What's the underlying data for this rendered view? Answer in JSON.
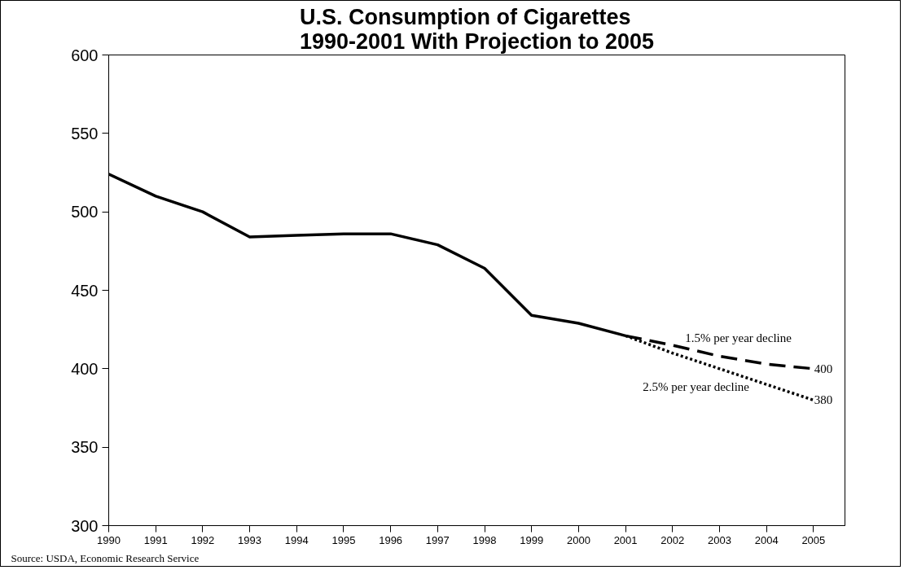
{
  "chart_data": {
    "type": "line",
    "title": "U.S. Consumption of Cigarettes\n1990-2001 With Projection to 2005",
    "x": [
      1990,
      1991,
      1992,
      1993,
      1994,
      1995,
      1996,
      1997,
      1998,
      1999,
      2000,
      2001
    ],
    "series": [
      {
        "color": "#000000",
        "line_style": "solid",
        "values": [
          524,
          510,
          500,
          484,
          485,
          486,
          486,
          479,
          464,
          434,
          429,
          421
        ]
      },
      {
        "name": "1.5% per year decline",
        "color": "#000000",
        "line_style": "dashed",
        "x": [
          2001,
          2002,
          2003,
          2004,
          2005
        ],
        "values": [
          421,
          415,
          408,
          403,
          400
        ],
        "value_labels": [
          null,
          null,
          null,
          null,
          "400"
        ]
      },
      {
        "name": "2.5% per year decline",
        "color": "#000000",
        "line_style": "dotted",
        "x": [
          2001,
          2002,
          2003,
          2004,
          2005
        ],
        "values": [
          421,
          410,
          400,
          390,
          380
        ],
        "value_labels": [
          null,
          null,
          null,
          null,
          "380"
        ]
      }
    ],
    "xlim": [
      1990,
      2005.67
    ],
    "xticks": [
      1990,
      1991,
      1992,
      1993,
      1994,
      1995,
      1996,
      1997,
      1998,
      1999,
      2000,
      2001,
      2002,
      2003,
      2004,
      2005
    ],
    "ylim": [
      300,
      600
    ],
    "yticks": [
      300,
      350,
      400,
      450,
      500,
      550,
      600
    ],
    "grid": false,
    "marker": "none",
    "annotations": [
      "Source: USDA, Economic Research Service"
    ]
  }
}
